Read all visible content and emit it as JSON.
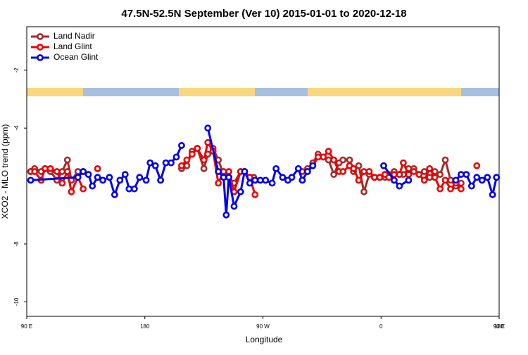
{
  "chart_data": {
    "type": "line",
    "title": "47.5N-52.5N September (Ver 10)   2015-01-01 to 2020-12-18",
    "x_label": "Longitude",
    "y_label": "XCO2 - MLO trend (ppm)",
    "xlim": [
      90,
      450
    ],
    "xticks": [
      {
        "value": 90,
        "label": "90 E"
      },
      {
        "value": 180,
        "label": "180"
      },
      {
        "value": 270,
        "label": "90 W"
      },
      {
        "value": 360,
        "label": "0"
      },
      {
        "value": 450,
        "label": "90 E"
      },
      {
        "value": 540,
        "label": "180"
      }
    ],
    "ylim": [
      -10.5,
      -0.5
    ],
    "yticks": [
      -10,
      -8,
      -4,
      -2
    ],
    "grid": false,
    "legend": "upper-left",
    "series": [
      {
        "name": "Land Nadir",
        "color": "#a52a2a",
        "x": [
          93,
          96,
          101,
          104,
          108,
          113,
          117,
          121,
          124,
          129,
          133,
          null,
          208,
          212,
          216,
          220,
          225,
          228,
          232,
          236,
          240,
          244,
          248,
          253,
          256,
          260,
          263,
          null,
          304,
          308,
          312,
          316,
          320,
          324,
          328,
          331,
          336,
          339,
          343,
          347,
          351,
          355,
          359,
          363,
          366,
          370,
          374,
          377,
          381,
          385,
          389,
          393,
          397,
          401,
          405,
          409,
          413,
          417,
          421
        ],
        "values": [
          -5.5,
          -5.4,
          -5.5,
          -5.4,
          -5.5,
          -5.8,
          -5.5,
          -5.1,
          -5.8,
          -5.5,
          -5.5,
          null,
          -5.4,
          -5.3,
          -4.8,
          -4.7,
          -5.4,
          -4.9,
          -4.7,
          -5.1,
          -5.6,
          -5.7,
          -5.9,
          -5.5,
          -5.5,
          -5.7,
          -5.7,
          null,
          -5.4,
          -5.2,
          -4.9,
          -5.0,
          -5.1,
          -5.6,
          -5.2,
          -5.1,
          -5.1,
          -5.5,
          -5.3,
          -6.2,
          -5.6,
          -5.7,
          -5.7,
          -5.7,
          -5.6,
          -5.5,
          -5.6,
          -5.6,
          -5.4,
          -5.4,
          -5.6,
          -5.5,
          -5.7,
          -5.5,
          -5.6,
          -5.1,
          -5.8,
          -6.0,
          -5.9
        ]
      },
      {
        "name": "Land Glint",
        "color": "#ee0000",
        "x": [
          93,
          96,
          101,
          104,
          108,
          113,
          117,
          121,
          124,
          129,
          133,
          null,
          144,
          null,
          208,
          212,
          216,
          220,
          225,
          228,
          232,
          236,
          240,
          244,
          248,
          253,
          256,
          260,
          264,
          null,
          300,
          304,
          308,
          312,
          316,
          320,
          324,
          328,
          331,
          336,
          339,
          343,
          347,
          351,
          355,
          359,
          363,
          366,
          370,
          374,
          377,
          381,
          385,
          389,
          393,
          397,
          401,
          405,
          409,
          413,
          417,
          421,
          null,
          433
        ],
        "values": [
          -5.5,
          -5.5,
          -5.8,
          -5.4,
          -5.4,
          -5.5,
          -5.9,
          -5.5,
          -6.2,
          -5.7,
          -6.1,
          null,
          -5.4,
          null,
          -5.3,
          -5.1,
          -4.9,
          -4.7,
          -5.1,
          -4.5,
          -4.8,
          -5.9,
          -5.5,
          -5.5,
          -6.2,
          -5.5,
          -5.5,
          -5.7,
          -6.3,
          null,
          -5.5,
          -5.5,
          -5.3,
          -5.0,
          -5.0,
          -4.8,
          -5.1,
          -5.5,
          -5.5,
          -5.3,
          -5.4,
          -5.8,
          -5.5,
          -5.5,
          -5.7,
          -5.7,
          -5.6,
          -5.7,
          -5.6,
          -5.6,
          -5.2,
          -5.6,
          -5.5,
          -5.6,
          -5.8,
          -5.4,
          -5.7,
          -6.1,
          -5.8,
          -6.1,
          -5.9,
          -6.1,
          null,
          -5.3
        ]
      },
      {
        "name": "Ocean Glint",
        "color": "#0000ee",
        "x": [
          93,
          129,
          133,
          137,
          140,
          144,
          148,
          153,
          157,
          161,
          165,
          168,
          172,
          176,
          181,
          184,
          188,
          192,
          196,
          200,
          204,
          208,
          null,
          228,
          236,
          240,
          242,
          244,
          248,
          253,
          256,
          260,
          264,
          268,
          272,
          277,
          280,
          285,
          289,
          292,
          297,
          300,
          304,
          308,
          null,
          362,
          370,
          374,
          381,
          null,
          417,
          421,
          425,
          429,
          433,
          437,
          441,
          445,
          448
        ],
        "values": [
          -5.8,
          -5.7,
          -5.5,
          -5.6,
          -6.0,
          -5.7,
          -5.8,
          -5.7,
          -6.3,
          -5.8,
          -5.6,
          -6.1,
          -6.1,
          -5.7,
          -5.8,
          -5.2,
          -5.3,
          -5.8,
          -5.2,
          -5.2,
          -5.0,
          -4.6,
          null,
          -4.0,
          -5.5,
          -5.7,
          -7.0,
          -5.7,
          -6.7,
          -6.2,
          -5.5,
          -5.9,
          -5.8,
          -5.8,
          -5.8,
          -5.9,
          -5.4,
          -5.7,
          -5.8,
          -5.7,
          -5.4,
          -5.8,
          -5.5,
          -5.3,
          null,
          -5.3,
          -5.8,
          -6.0,
          -5.8,
          null,
          -5.8,
          -5.6,
          -5.6,
          -6.0,
          -5.7,
          -5.8,
          -5.7,
          -6.3,
          -5.7
        ]
      }
    ]
  }
}
